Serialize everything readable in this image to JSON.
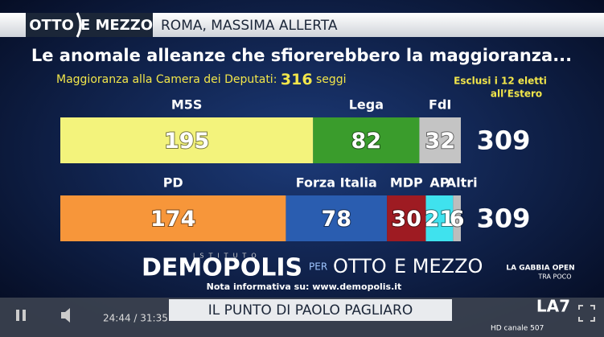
{
  "header": {
    "program": "OTTO",
    "program2": "E MEZZO",
    "headline": "ROMA, MASSIMA ALLERTA"
  },
  "chart_data": {
    "type": "bar",
    "orientation": "horizontal",
    "stacked": true,
    "title": "Le anomale alleanze che sfiorerebbero la maggioranza...",
    "subtitle": "Maggioranza alla Camera dei Deputati:",
    "majority": 316,
    "majority_unit": "seggi",
    "note": [
      "Esclusi i 12 eletti",
      "all’Estero"
    ],
    "rows": [
      {
        "segments": [
          {
            "name": "M5S",
            "color": "#f3f37c",
            "value": 195
          },
          {
            "name": "Lega",
            "color": "#3a9c2c",
            "value": 82
          },
          {
            "name": "FdI",
            "color": "#c4c4c4",
            "value": 32
          }
        ],
        "total": 309
      },
      {
        "segments": [
          {
            "name": "PD",
            "color": "#f7963a",
            "value": 174
          },
          {
            "name": "Forza Italia",
            "color": "#2a5db0",
            "value": 78
          },
          {
            "name": "MDP",
            "color": "#9e1b22",
            "value": 30
          },
          {
            "name": "AP",
            "color": "#3fe2ee",
            "value": 21
          },
          {
            "name": "Altri",
            "color": "#bdbdbd",
            "value": 6
          }
        ],
        "total": 309
      }
    ]
  },
  "source": {
    "prefix": "ISTITUTO",
    "brand": "DEMOPOLIS",
    "per": "PER",
    "partner": "OTTO",
    "partner2": "E MEZZO",
    "note": "Nota informativa su: www.demopolis.it"
  },
  "promo": {
    "line1": "LA GABBIA OPEN",
    "line2": "TRA POCO"
  },
  "player": {
    "time": "24:44 / 31:35",
    "banner": "IL PUNTO DI PAOLO PAGLIARO",
    "channel": "HD canale 507",
    "logo": "LA7"
  }
}
